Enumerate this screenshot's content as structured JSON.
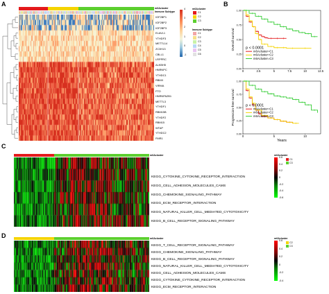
{
  "panels": {
    "a": "A",
    "b": "B",
    "c": "C",
    "d": "D"
  },
  "heatmapA": {
    "header_labels": [
      "m6Acluster",
      "Immune Subtype"
    ],
    "genes": [
      "IGF2BP1",
      "IGF2BP2",
      "IGF2BP3",
      "ELAVL1",
      "YTHDF3",
      "METTL14",
      "ZC3H13",
      "CBLL1",
      "LRPPRC",
      "ALKBH5",
      "HNRNPC",
      "YTHDC1",
      "RBMX",
      "VIRMA",
      "FTO",
      "HNRNPA2B1",
      "METTL3",
      "YTHDF1",
      "RBM15B",
      "YTHDF2",
      "RBM15",
      "WTAP",
      "YTHDC2",
      "FMR1"
    ],
    "legend_title_cluster": "m6Acluster",
    "legend_clusters": [
      {
        "label": "C1",
        "color": "#e41a1c"
      },
      {
        "label": "C2",
        "color": "#f5d400"
      },
      {
        "label": "C3",
        "color": "#5ccf2f"
      }
    ],
    "legend_title_immune": "Immune Subtype",
    "legend_immune": [
      {
        "label": "C1",
        "color": "#f4a6a6"
      },
      {
        "label": "C2",
        "color": "#f6e08a"
      },
      {
        "label": "C3",
        "color": "#c9f2a8"
      },
      {
        "label": "C4",
        "color": "#b8d8f5"
      },
      {
        "label": "C5",
        "color": "#eac4f2"
      },
      {
        "label": "C6",
        "color": "#e2e2e2"
      }
    ],
    "scale_ticks": [
      "4",
      "3",
      "2",
      "1",
      "0",
      "-1"
    ]
  },
  "chart_data": [
    {
      "type": "line",
      "title": "",
      "xlabel": "",
      "ylabel": "Overall survival",
      "xlim": [
        0,
        12.5
      ],
      "ylim": [
        0,
        1
      ],
      "x_ticks": [
        "0",
        "2.5",
        "5",
        "7.5",
        "10",
        "12.5"
      ],
      "y_ticks": [
        "0.00",
        "0.25",
        "0.50",
        "0.75",
        "1.00"
      ],
      "pvalue": "p < 0.0001",
      "series": [
        {
          "name": "m6Acluster=C1",
          "color": "#e41a1c",
          "x": [
            0,
            0.5,
            1,
            1.5,
            2,
            2.5,
            3,
            3.5,
            4,
            5,
            6,
            7
          ],
          "y": [
            1,
            0.9,
            0.8,
            0.72,
            0.64,
            0.58,
            0.55,
            0.53,
            0.52,
            0.52,
            0.52,
            0.52
          ]
        },
        {
          "name": "m6Acluster=C2",
          "color": "#f5d400",
          "x": [
            0,
            0.5,
            1,
            1.5,
            2,
            2.5,
            3,
            4,
            5,
            6,
            7,
            9,
            11
          ],
          "y": [
            1,
            0.92,
            0.82,
            0.72,
            0.6,
            0.5,
            0.42,
            0.38,
            0.36,
            0.36,
            0.35,
            0.35,
            0.35
          ]
        },
        {
          "name": "m6Acluster=C3",
          "color": "#33cc33",
          "x": [
            0,
            1,
            2,
            3,
            4,
            5,
            6,
            7,
            8,
            9,
            10,
            11,
            12
          ],
          "y": [
            1,
            0.95,
            0.9,
            0.85,
            0.8,
            0.76,
            0.72,
            0.68,
            0.65,
            0.62,
            0.6,
            0.55,
            0.55
          ]
        }
      ]
    },
    {
      "type": "line",
      "title": "",
      "xlabel": "Years",
      "ylabel": "Progression-free survival",
      "xlim": [
        0,
        12.5
      ],
      "ylim": [
        0,
        1
      ],
      "x_ticks": [
        "0",
        "5",
        "10"
      ],
      "y_ticks": [
        "0.00",
        "0.25",
        "0.50",
        "0.75",
        "1.00"
      ],
      "pvalue": "p < 0.0001",
      "series": [
        {
          "name": "m6Acluster=C1",
          "color": "#e41a1c",
          "x": [
            0,
            0.5,
            1,
            1.5,
            2,
            2.5,
            3,
            4,
            5,
            6,
            7,
            8
          ],
          "y": [
            1,
            0.82,
            0.68,
            0.55,
            0.45,
            0.38,
            0.33,
            0.3,
            0.27,
            0.24,
            0.22,
            0.2
          ]
        },
        {
          "name": "m6Acluster=C2",
          "color": "#f5d400",
          "x": [
            0,
            0.5,
            1,
            1.5,
            2,
            3,
            4,
            5,
            6,
            7,
            8,
            9
          ],
          "y": [
            1,
            0.85,
            0.7,
            0.58,
            0.45,
            0.35,
            0.3,
            0.27,
            0.24,
            0.22,
            0.2,
            0.2
          ]
        },
        {
          "name": "m6Acluster=C3",
          "color": "#33cc33",
          "x": [
            0,
            1,
            2,
            3,
            4,
            5,
            6,
            7,
            8,
            9,
            10,
            11,
            12
          ],
          "y": [
            1,
            0.92,
            0.85,
            0.8,
            0.76,
            0.72,
            0.7,
            0.68,
            0.65,
            0.6,
            0.55,
            0.45,
            0.4
          ]
        }
      ]
    }
  ],
  "heatmapC": {
    "header_label": "m6Acluster",
    "pathways": [
      "KEGG_CYTOKINE_CYTOKINE_RECEPTOR_INTERACTION",
      "KEGG_CELL_ADHESION_MOLECULES_CAMS",
      "KEGG_CHEMOKINE_SIGNALING_PATHWAY",
      "KEGG_ECM_RECEPTOR_INTERACTION",
      "KEGG_NATURAL_KILLER_CELL_MEDIATED_CYTOTOXICITY",
      "KEGG_B_CELL_RECEPTOR_SIGNALING_PATHWAY"
    ],
    "legend_title": "m6Acluster",
    "legend_items": [
      {
        "label": "C1",
        "color": "#e41a1c"
      },
      {
        "label": "C3",
        "color": "#5ccf2f"
      }
    ],
    "scale_ticks": [
      "0.6",
      "0.4",
      "0.2",
      "0",
      "-0.2",
      "-0.4",
      "-0.6"
    ]
  },
  "heatmapD": {
    "header_label": "m6Acluster",
    "pathways": [
      "KEGG_T_CELL_RECEPTOR_SIGNALING_PATHWAY",
      "KEGG_CHEMOKINE_SIGNALING_PATHWAY",
      "KEGG_B_CELL_RECEPTOR_SIGNALING_PATHWAY",
      "KEGG_NATURAL_KILLER_CELL_MEDIATED_CYTOTOXICITY",
      "KEGG_CELL_ADHESION_MOLECULES_CAMS",
      "KEGG_CYTOKINE_CYTOKINE_RECEPTOR_INTERACTION",
      "KEGG_ECM_RECEPTOR_INTERACTION"
    ],
    "legend_title": "m6Acluster",
    "legend_items": [
      {
        "label": "C2",
        "color": "#f5d400"
      },
      {
        "label": "C3",
        "color": "#5ccf2f"
      }
    ],
    "scale_ticks": [
      "0.6",
      "0.4",
      "0.2",
      "0",
      "-0.2",
      "-0.4"
    ]
  }
}
